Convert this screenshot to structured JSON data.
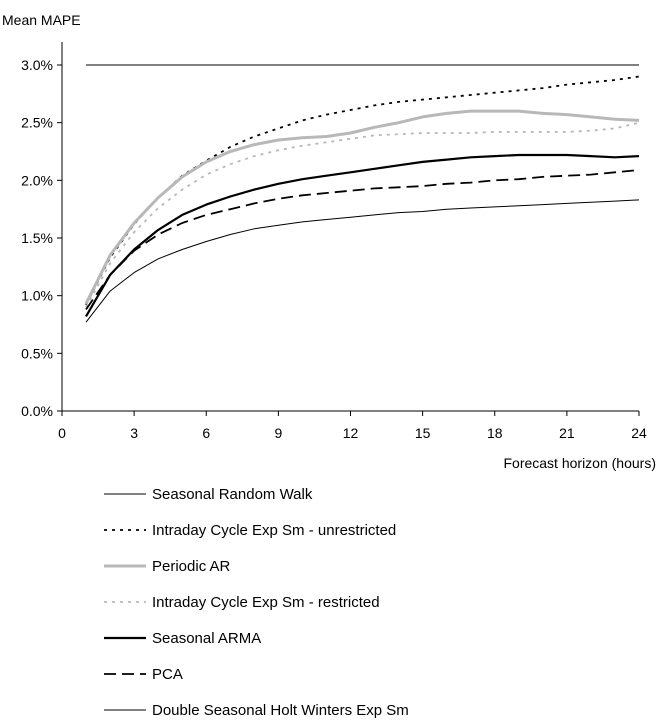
{
  "chart_data": {
    "type": "line",
    "title": "",
    "ylabel": "Mean MAPE",
    "xlabel": "Forecast horizon (hours)",
    "xlim": [
      0,
      24
    ],
    "ylim": [
      0.0,
      3.0
    ],
    "xticks": [
      0,
      3,
      6,
      9,
      12,
      15,
      18,
      21,
      24
    ],
    "xtick_labels": [
      "0",
      "3",
      "6",
      "9",
      "12",
      "15",
      "18",
      "21",
      "24"
    ],
    "yticks": [
      0.0,
      0.5,
      1.0,
      1.5,
      2.0,
      2.5,
      3.0
    ],
    "ytick_labels": [
      "0.0%",
      "0.5%",
      "1.0%",
      "1.5%",
      "2.0%",
      "2.5%",
      "3.0%"
    ],
    "grid": false,
    "legend_position": "bottom",
    "x": [
      1,
      2,
      3,
      4,
      5,
      6,
      7,
      8,
      9,
      10,
      11,
      12,
      13,
      14,
      15,
      16,
      17,
      18,
      19,
      20,
      21,
      22,
      23,
      24
    ],
    "series": [
      {
        "name": "Seasonal Random Walk",
        "color": "#000000",
        "dash": "solid",
        "width": 1,
        "values": [
          3.0,
          3.0,
          3.0,
          3.0,
          3.0,
          3.0,
          3.0,
          3.0,
          3.0,
          3.0,
          3.0,
          3.0,
          3.0,
          3.0,
          3.0,
          3.0,
          3.0,
          3.0,
          3.0,
          3.0,
          3.0,
          3.0,
          3.0,
          3.0
        ]
      },
      {
        "name": "Intraday Cycle Exp Sm - unrestricted",
        "color": "#000000",
        "dash": "dotted",
        "width": 1.8,
        "values": [
          0.92,
          1.33,
          1.62,
          1.85,
          2.04,
          2.17,
          2.29,
          2.38,
          2.45,
          2.52,
          2.57,
          2.61,
          2.65,
          2.68,
          2.7,
          2.72,
          2.74,
          2.76,
          2.78,
          2.8,
          2.83,
          2.85,
          2.87,
          2.9
        ]
      },
      {
        "name": "Periodic AR",
        "color": "#b8b8b8",
        "dash": "solid",
        "width": 3,
        "values": [
          0.93,
          1.35,
          1.63,
          1.85,
          2.03,
          2.16,
          2.25,
          2.31,
          2.35,
          2.37,
          2.38,
          2.41,
          2.46,
          2.5,
          2.55,
          2.58,
          2.6,
          2.6,
          2.6,
          2.58,
          2.57,
          2.55,
          2.53,
          2.52
        ]
      },
      {
        "name": "Intraday Cycle Exp Sm - restricted",
        "color": "#b8b8b8",
        "dash": "dotted",
        "width": 1.8,
        "values": [
          0.9,
          1.28,
          1.55,
          1.76,
          1.92,
          2.05,
          2.14,
          2.21,
          2.26,
          2.3,
          2.33,
          2.36,
          2.39,
          2.4,
          2.41,
          2.41,
          2.41,
          2.42,
          2.42,
          2.42,
          2.42,
          2.43,
          2.45,
          2.5
        ]
      },
      {
        "name": "Seasonal ARMA",
        "color": "#000000",
        "dash": "solid",
        "width": 2.2,
        "values": [
          0.82,
          1.18,
          1.4,
          1.57,
          1.7,
          1.79,
          1.86,
          1.92,
          1.97,
          2.01,
          2.04,
          2.07,
          2.1,
          2.13,
          2.16,
          2.18,
          2.2,
          2.21,
          2.22,
          2.22,
          2.22,
          2.21,
          2.2,
          2.21
        ]
      },
      {
        "name": "PCA",
        "color": "#000000",
        "dash": "dashed",
        "width": 1.8,
        "values": [
          0.88,
          1.18,
          1.39,
          1.53,
          1.63,
          1.7,
          1.75,
          1.8,
          1.84,
          1.87,
          1.89,
          1.91,
          1.93,
          1.94,
          1.95,
          1.97,
          1.98,
          2.0,
          2.01,
          2.03,
          2.04,
          2.05,
          2.07,
          2.09
        ]
      },
      {
        "name": "Double Seasonal Holt Winters Exp Sm",
        "color": "#000000",
        "dash": "solid",
        "width": 1,
        "values": [
          0.77,
          1.04,
          1.2,
          1.32,
          1.4,
          1.47,
          1.53,
          1.58,
          1.61,
          1.64,
          1.66,
          1.68,
          1.7,
          1.72,
          1.73,
          1.75,
          1.76,
          1.77,
          1.78,
          1.79,
          1.8,
          1.81,
          1.82,
          1.83
        ]
      }
    ]
  }
}
